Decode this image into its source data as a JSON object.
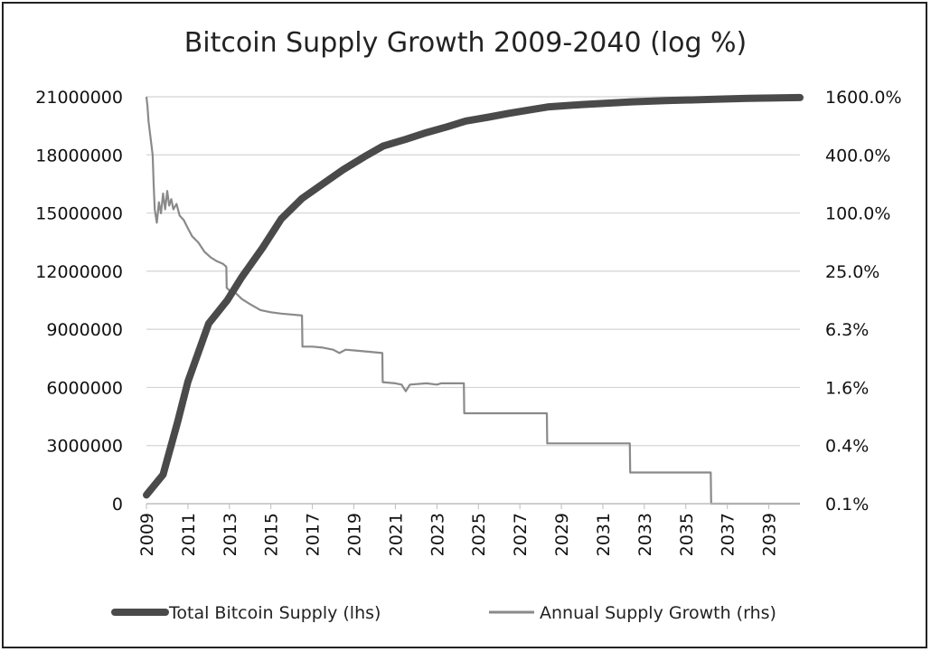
{
  "chart_data": {
    "type": "line",
    "title": "Bitcoin Supply Growth 2009-2040 (log %)",
    "x_tick_labels": [
      "2009",
      "2011",
      "2013",
      "2015",
      "2017",
      "2019",
      "2021",
      "2023",
      "2025",
      "2027",
      "2029",
      "2031",
      "2033",
      "2035",
      "2037",
      "2039"
    ],
    "xlim": [
      2009,
      2040.5
    ],
    "y_left": {
      "tick_labels": [
        "0",
        "3000000",
        "6000000",
        "9000000",
        "12000000",
        "15000000",
        "18000000",
        "21000000"
      ],
      "ylim": [
        0,
        21000000
      ]
    },
    "y_right": {
      "tick_labels": [
        "0.1%",
        "0.4%",
        "1.6%",
        "6.3%",
        "25.0%",
        "100.0%",
        "400.0%",
        "1600.0%"
      ],
      "scale": "log4",
      "ylim": [
        0.1,
        1600
      ]
    },
    "grid": true,
    "series": [
      {
        "name": "Total Bitcoin Supply (lhs)",
        "axis": "left",
        "color": "#4a4a4a",
        "points": [
          [
            2009.0,
            450000
          ],
          [
            2009.8,
            1500000
          ],
          [
            2010.5,
            4200000
          ],
          [
            2011.0,
            6300000
          ],
          [
            2012.0,
            9300000
          ],
          [
            2012.9,
            10500000
          ],
          [
            2013.6,
            11700000
          ],
          [
            2014.6,
            13200000
          ],
          [
            2015.5,
            14700000
          ],
          [
            2016.5,
            15750000
          ],
          [
            2017.5,
            16500000
          ],
          [
            2018.5,
            17250000
          ],
          [
            2019.5,
            17900000
          ],
          [
            2020.4,
            18450000
          ],
          [
            2021.5,
            18800000
          ],
          [
            2022.5,
            19150000
          ],
          [
            2023.5,
            19450000
          ],
          [
            2024.4,
            19750000
          ],
          [
            2025.5,
            19950000
          ],
          [
            2026.5,
            20150000
          ],
          [
            2027.5,
            20330000
          ],
          [
            2028.4,
            20480000
          ],
          [
            2030.0,
            20600000
          ],
          [
            2032.4,
            20740000
          ],
          [
            2034.0,
            20800000
          ],
          [
            2036.4,
            20870000
          ],
          [
            2038.0,
            20920000
          ],
          [
            2040.5,
            20960000
          ]
        ]
      },
      {
        "name": "Annual Supply Growth (rhs)",
        "axis": "right",
        "color": "#8a8a8a",
        "points": [
          [
            2009.0,
            1600
          ],
          [
            2009.05,
            1300
          ],
          [
            2009.1,
            900
          ],
          [
            2009.2,
            600
          ],
          [
            2009.3,
            400
          ],
          [
            2009.35,
            200
          ],
          [
            2009.4,
            110
          ],
          [
            2009.5,
            80
          ],
          [
            2009.6,
            130
          ],
          [
            2009.7,
            100
          ],
          [
            2009.8,
            160
          ],
          [
            2009.9,
            110
          ],
          [
            2010.0,
            170
          ],
          [
            2010.1,
            120
          ],
          [
            2010.2,
            140
          ],
          [
            2010.3,
            110
          ],
          [
            2010.45,
            125
          ],
          [
            2010.6,
            95
          ],
          [
            2010.8,
            85
          ],
          [
            2011.0,
            70
          ],
          [
            2011.2,
            58
          ],
          [
            2011.5,
            50
          ],
          [
            2011.8,
            40
          ],
          [
            2012.1,
            35
          ],
          [
            2012.4,
            32
          ],
          [
            2012.7,
            30
          ],
          [
            2012.85,
            28
          ],
          [
            2012.87,
            17
          ],
          [
            2013.0,
            16
          ],
          [
            2013.3,
            15
          ],
          [
            2013.6,
            13
          ],
          [
            2014.0,
            11.5
          ],
          [
            2014.5,
            10
          ],
          [
            2015.0,
            9.5
          ],
          [
            2015.5,
            9.2
          ],
          [
            2016.0,
            9
          ],
          [
            2016.5,
            8.8
          ],
          [
            2016.52,
            4.2
          ],
          [
            2017.0,
            4.2
          ],
          [
            2017.5,
            4.1
          ],
          [
            2018.0,
            3.9
          ],
          [
            2018.3,
            3.6
          ],
          [
            2018.6,
            3.9
          ],
          [
            2019.2,
            3.8
          ],
          [
            2019.8,
            3.7
          ],
          [
            2020.37,
            3.6
          ],
          [
            2020.39,
            1.8
          ],
          [
            2021.0,
            1.75
          ],
          [
            2021.3,
            1.7
          ],
          [
            2021.5,
            1.45
          ],
          [
            2021.7,
            1.7
          ],
          [
            2022.5,
            1.75
          ],
          [
            2023.0,
            1.7
          ],
          [
            2023.2,
            1.75
          ],
          [
            2024.0,
            1.75
          ],
          [
            2024.3,
            1.75
          ],
          [
            2024.32,
            0.86
          ],
          [
            2028.3,
            0.86
          ],
          [
            2028.32,
            0.42
          ],
          [
            2032.3,
            0.42
          ],
          [
            2032.32,
            0.21
          ],
          [
            2036.2,
            0.21
          ],
          [
            2036.22,
            0.1
          ],
          [
            2040.5,
            0.1
          ]
        ]
      }
    ]
  }
}
